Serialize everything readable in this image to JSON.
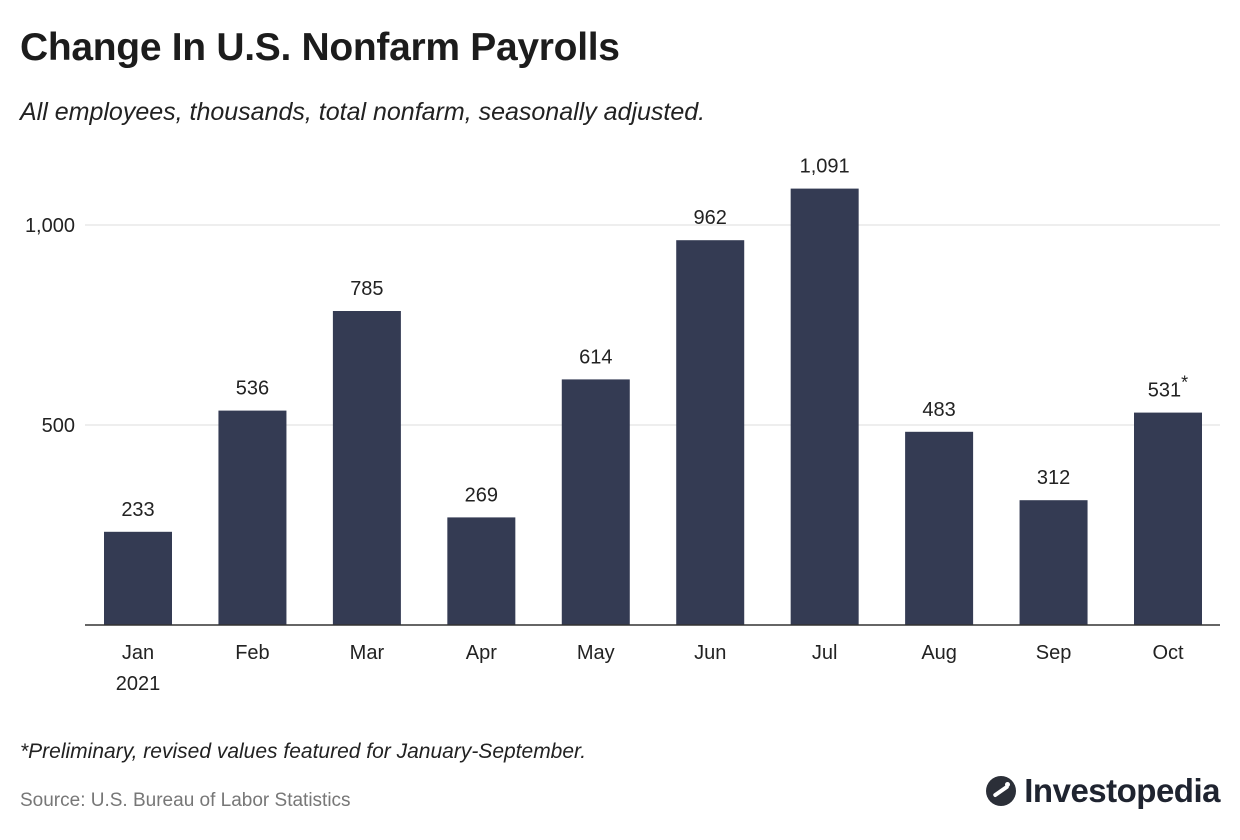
{
  "chart_data": {
    "type": "bar",
    "title": "Change In U.S. Nonfarm Payrolls",
    "subtitle": "All employees, thousands, total nonfarm, seasonally adjusted.",
    "categories": [
      "Jan",
      "Feb",
      "Mar",
      "Apr",
      "May",
      "Jun",
      "Jul",
      "Aug",
      "Sep",
      "Oct"
    ],
    "category_sublabels": [
      "2021",
      "",
      "",
      "",
      "",
      "",
      "",
      "",
      "",
      ""
    ],
    "values": [
      233,
      536,
      785,
      269,
      614,
      962,
      1091,
      483,
      312,
      531
    ],
    "value_labels": [
      "233",
      "536",
      "785",
      "269",
      "614",
      "962",
      "1,091",
      "483",
      "312",
      "531"
    ],
    "value_label_marks": [
      "",
      "",
      "",
      "",
      "",
      "",
      "",
      "",
      "",
      "*"
    ],
    "yticks": [
      500,
      1000
    ],
    "ytick_labels": [
      "500",
      "1,000"
    ],
    "ylim": [
      0,
      1200
    ],
    "grid": true,
    "bar_color": "#343b53",
    "footnote": "*Preliminary, revised values featured for January-September.",
    "source": "Source: U.S. Bureau of Labor Statistics"
  },
  "branding": {
    "logo_text": "Investopedia",
    "logo_icon": "investopedia-logo-icon"
  }
}
